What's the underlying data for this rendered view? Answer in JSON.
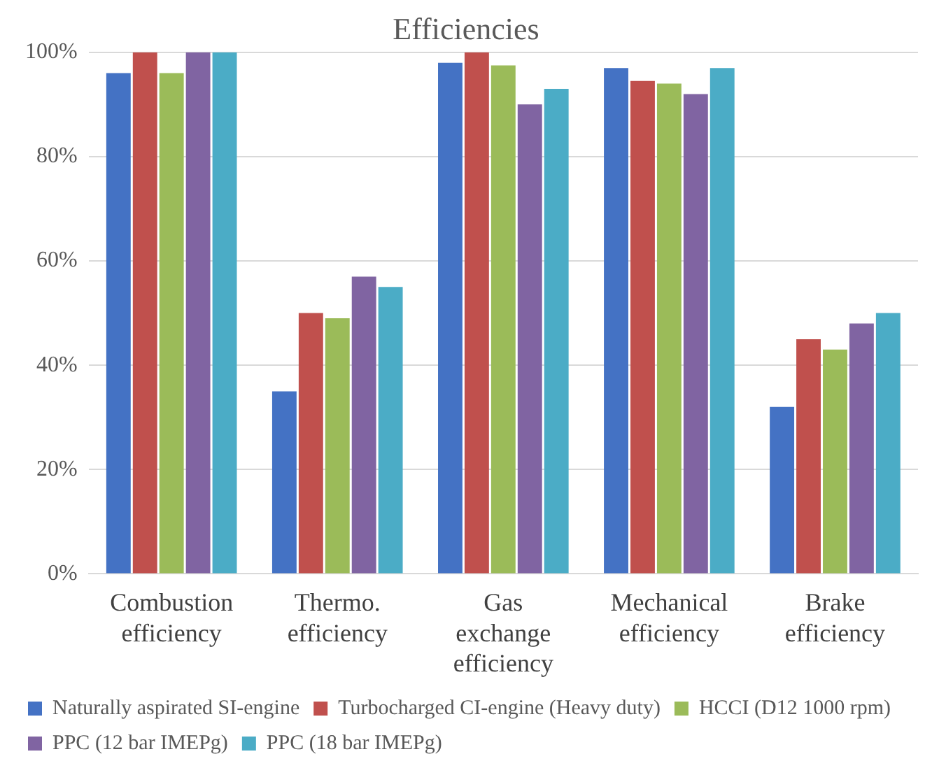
{
  "chart_data": {
    "type": "bar",
    "title": "Efficiencies",
    "categories": [
      "Combustion efficiency",
      "Thermo. efficiency",
      "Gas exchange efficiency",
      "Mechanical efficiency",
      "Brake efficiency"
    ],
    "series": [
      {
        "name": "Naturally aspirated SI-engine",
        "color": "#4472c4",
        "values": [
          96,
          35,
          98,
          97,
          32
        ]
      },
      {
        "name": "Turbocharged CI-engine (Heavy duty)",
        "color": "#c0504d",
        "values": [
          100,
          50,
          100,
          94.5,
          45
        ]
      },
      {
        "name": "HCCI (D12 1000 rpm)",
        "color": "#9bbb59",
        "values": [
          96,
          49,
          97.5,
          94,
          43
        ]
      },
      {
        "name": "PPC (12 bar IMEPg)",
        "color": "#8064a2",
        "values": [
          100,
          57,
          90,
          92,
          48
        ]
      },
      {
        "name": "PPC (18 bar IMEPg)",
        "color": "#4bacc6",
        "values": [
          100,
          55,
          93,
          97,
          50
        ]
      }
    ],
    "ylim": [
      0,
      100
    ],
    "yticks": [
      {
        "value": 0,
        "label": "0%"
      },
      {
        "value": 20,
        "label": "20%"
      },
      {
        "value": 40,
        "label": "40%"
      },
      {
        "value": 60,
        "label": "60%"
      },
      {
        "value": 80,
        "label": "80%"
      },
      {
        "value": 100,
        "label": "100%"
      }
    ],
    "grid": "y",
    "legend": "bottom"
  }
}
